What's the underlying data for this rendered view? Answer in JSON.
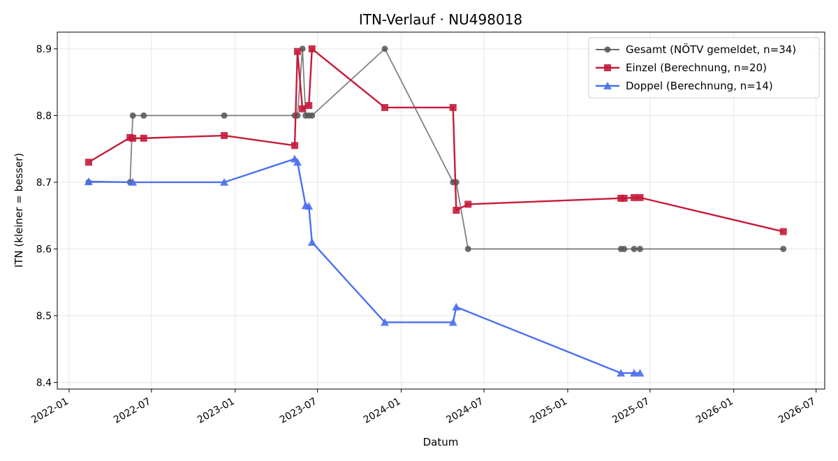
{
  "chart_data": {
    "type": "line",
    "title": "ITN-Verlauf · NU498018",
    "xlabel": "Datum",
    "ylabel": "ITN  (kleiner = besser)",
    "xlim": [
      "2021-12-06",
      "2026-07-20"
    ],
    "ylim": [
      8.39,
      8.925
    ],
    "x_ticks": [
      "2022-01-01",
      "2022-07-01",
      "2023-01-01",
      "2023-07-01",
      "2024-01-01",
      "2024-07-01",
      "2025-01-01",
      "2025-07-01",
      "2026-01-01",
      "2026-07-01"
    ],
    "x_tick_labels": [
      "2022-01",
      "2022-07",
      "2023-01",
      "2023-07",
      "2024-01",
      "2024-07",
      "2025-01",
      "2025-07",
      "2026-01",
      "2026-07"
    ],
    "y_ticks": [
      8.4,
      8.5,
      8.6,
      8.7,
      8.8,
      8.9
    ],
    "y_tick_labels": [
      "8.4",
      "8.5",
      "8.6",
      "8.7",
      "8.8",
      "8.9"
    ],
    "grid": true,
    "legend_position": "top-right",
    "series": [
      {
        "name": "Gesamt (NÖTV gemeldet, n=34)",
        "color": "#555555",
        "marker": "circle",
        "points": [
          [
            "2022-02-13",
            8.7
          ],
          [
            "2022-05-15",
            8.7
          ],
          [
            "2022-05-21",
            8.8
          ],
          [
            "2022-06-14",
            8.8
          ],
          [
            "2022-12-08",
            8.8
          ],
          [
            "2023-05-12",
            8.8
          ],
          [
            "2023-05-18",
            8.8
          ],
          [
            "2023-05-29",
            8.9
          ],
          [
            "2023-06-05",
            8.8
          ],
          [
            "2023-06-12",
            8.8
          ],
          [
            "2023-06-19",
            8.8
          ],
          [
            "2023-11-26",
            8.9
          ],
          [
            "2024-04-24",
            8.7
          ],
          [
            "2024-05-01",
            8.7
          ],
          [
            "2024-05-27",
            8.6
          ],
          [
            "2025-04-28",
            8.6
          ],
          [
            "2025-05-05",
            8.6
          ],
          [
            "2025-05-27",
            8.6
          ],
          [
            "2025-06-09",
            8.6
          ],
          [
            "2026-04-20",
            8.6
          ]
        ]
      },
      {
        "name": "Einzel (Berechnung, n=20)",
        "color": "#c51b3a",
        "marker": "square",
        "points": [
          [
            "2022-02-13",
            8.73
          ],
          [
            "2022-05-15",
            8.767
          ],
          [
            "2022-05-21",
            8.766
          ],
          [
            "2022-06-14",
            8.766
          ],
          [
            "2022-12-08",
            8.77
          ],
          [
            "2023-05-12",
            8.755
          ],
          [
            "2023-05-18",
            8.896
          ],
          [
            "2023-05-29",
            8.81
          ],
          [
            "2023-06-12",
            8.815
          ],
          [
            "2023-06-19",
            8.9
          ],
          [
            "2023-11-26",
            8.812
          ],
          [
            "2024-04-24",
            8.812
          ],
          [
            "2024-05-01",
            8.658
          ],
          [
            "2024-05-27",
            8.667
          ],
          [
            "2025-04-28",
            8.676
          ],
          [
            "2025-05-05",
            8.676
          ],
          [
            "2025-05-27",
            8.677
          ],
          [
            "2025-06-09",
            8.677
          ],
          [
            "2026-04-20",
            8.626
          ]
        ]
      },
      {
        "name": "Doppel (Berechnung, n=14)",
        "color": "#4a6ff0",
        "marker": "triangle",
        "points": [
          [
            "2022-02-13",
            8.701
          ],
          [
            "2022-05-21",
            8.7
          ],
          [
            "2022-12-08",
            8.7
          ],
          [
            "2023-05-12",
            8.735
          ],
          [
            "2023-05-18",
            8.73
          ],
          [
            "2023-06-05",
            8.665
          ],
          [
            "2023-06-12",
            8.664
          ],
          [
            "2023-06-19",
            8.61
          ],
          [
            "2023-11-26",
            8.49
          ],
          [
            "2024-04-24",
            8.49
          ],
          [
            "2024-05-01",
            8.513
          ],
          [
            "2025-04-28",
            8.414
          ],
          [
            "2025-05-27",
            8.414
          ],
          [
            "2025-06-09",
            8.414
          ]
        ]
      }
    ]
  }
}
